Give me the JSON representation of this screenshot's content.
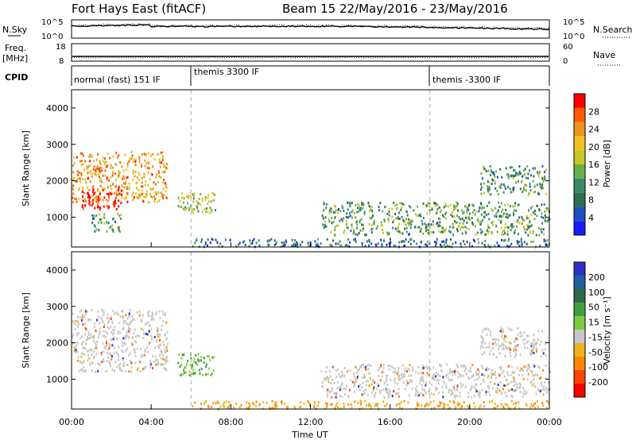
{
  "header": {
    "station": "Fort Hays East (fitACF)",
    "beam_date": "Beam 15  22/May/2016 - 23/May/2016"
  },
  "noise_panel": {
    "left_label": "N.Sky",
    "right_label": "N.Search",
    "left_ticks": [
      "10^5",
      "10^0"
    ],
    "right_ticks": [
      "10^5",
      "10^0"
    ]
  },
  "freq_panel": {
    "left_label_1": "Freq.",
    "left_label_2": "[MHz]",
    "right_label": "Nave",
    "left_ticks": [
      "18",
      "8"
    ],
    "right_ticks": [
      "60",
      "0"
    ]
  },
  "cpid_panel": {
    "label": "CPID",
    "segments": [
      {
        "label": "normal (fast) 151 IF",
        "start": "00:00"
      },
      {
        "label": "themis 3300 IF",
        "start": "06:00"
      },
      {
        "label": "themis -3300 IF",
        "start": "18:00"
      }
    ]
  },
  "colors": {
    "power_scale": [
      "#1a1aff",
      "#2050c0",
      "#2e6e50",
      "#3a8a6a",
      "#6ab04a",
      "#c8c828",
      "#f0c020",
      "#f09020",
      "#ff5a00",
      "#ff0000"
    ],
    "velocity_scale": [
      "#3030c8",
      "#2060a0",
      "#306848",
      "#40a040",
      "#80cc40",
      "#c8c8c8",
      "#f0b020",
      "#ff8800",
      "#ff4400",
      "#ff0000"
    ]
  },
  "chart_data": [
    {
      "type": "heatmap",
      "title": "Power",
      "xlabel": "",
      "ylabel": "Slant Range [km]",
      "x_ticks": [
        "00:00",
        "04:00",
        "08:00",
        "12:00",
        "16:00",
        "20:00",
        "00:00"
      ],
      "y_ticks": [
        1000,
        2000,
        3000,
        4000
      ],
      "ylim": [
        180,
        4500
      ],
      "xlim_hours": [
        0,
        24
      ],
      "colorbar_label": "Power [dB]",
      "colorbar_ticks": [
        "4",
        "8",
        "12",
        "16",
        "20",
        "24",
        "28"
      ],
      "colorbar_range": [
        0,
        30
      ],
      "echo_regions": [
        {
          "t": [
            0.0,
            4.8
          ],
          "range_km": [
            1400,
            2800
          ],
          "level": 20
        },
        {
          "t": [
            0.5,
            2.5
          ],
          "range_km": [
            1200,
            1800
          ],
          "level": 28
        },
        {
          "t": [
            1.0,
            2.5
          ],
          "range_km": [
            600,
            1100
          ],
          "level": 10
        },
        {
          "t": [
            5.3,
            7.2
          ],
          "range_km": [
            1100,
            1700
          ],
          "level": 14
        },
        {
          "t": [
            12.5,
            24.0
          ],
          "range_km": [
            500,
            1400
          ],
          "level": 10
        },
        {
          "t": [
            20.5,
            23.8
          ],
          "range_km": [
            1600,
            2400
          ],
          "level": 9
        },
        {
          "t": [
            6.0,
            24.0
          ],
          "range_km": [
            180,
            400
          ],
          "level": 6
        }
      ]
    },
    {
      "type": "heatmap",
      "title": "Velocity",
      "xlabel": "Time UT",
      "ylabel": "Slant Range [km]",
      "x_ticks": [
        "00:00",
        "04:00",
        "08:00",
        "12:00",
        "16:00",
        "20:00",
        "00:00"
      ],
      "y_ticks": [
        1000,
        2000,
        3000,
        4000
      ],
      "ylim": [
        180,
        4500
      ],
      "xlim_hours": [
        0,
        24
      ],
      "colorbar_label": "Velocity [m s⁻¹]",
      "colorbar_ticks": [
        "200",
        "100",
        "50",
        "15",
        "-15",
        "-50",
        "-100",
        "-200"
      ],
      "echo_regions": [
        {
          "t": [
            0.0,
            4.8
          ],
          "range_km": [
            1200,
            2900
          ],
          "velocity": 0
        },
        {
          "t": [
            5.3,
            7.2
          ],
          "range_km": [
            1100,
            1700
          ],
          "velocity": 80
        },
        {
          "t": [
            12.5,
            24.0
          ],
          "range_km": [
            500,
            1400
          ],
          "velocity": 0
        },
        {
          "t": [
            20.5,
            23.8
          ],
          "range_km": [
            1600,
            2400
          ],
          "velocity": 0
        },
        {
          "t": [
            6.0,
            24.0
          ],
          "range_km": [
            180,
            400
          ],
          "velocity": -60
        }
      ]
    }
  ]
}
